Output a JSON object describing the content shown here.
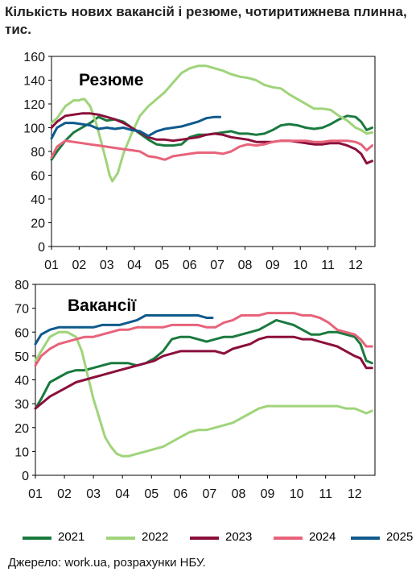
{
  "title": "Кількість нових вакансій і резюме, чотиритижнева плинна, тис.",
  "source": "Джерело: work.ua, розрахунки НБУ.",
  "colors": {
    "2021": "#1a7a3e",
    "2022": "#9fd47a",
    "2023": "#8b0f3c",
    "2024": "#e8637a",
    "2025": "#0f5a8c"
  },
  "legend": [
    {
      "label": "2021",
      "color": "#1a7a3e"
    },
    {
      "label": "2022",
      "color": "#9fd47a"
    },
    {
      "label": "2023",
      "color": "#8b0f3c"
    },
    {
      "label": "2024",
      "color": "#e8637a"
    },
    {
      "label": "2025",
      "color": "#0f5a8c"
    }
  ],
  "chart_data": [
    {
      "type": "line",
      "title": "Резюме",
      "ylim": [
        0,
        160
      ],
      "yticks": [
        0,
        20,
        40,
        60,
        80,
        100,
        120,
        140,
        160
      ],
      "xlim": [
        1,
        12.7
      ],
      "xticks": [
        1,
        2,
        3,
        4,
        5,
        6,
        7,
        8,
        9,
        10,
        11,
        12
      ],
      "xticklabels": [
        "01",
        "02",
        "03",
        "04",
        "05",
        "06",
        "07",
        "08",
        "09",
        "10",
        "11",
        "12"
      ],
      "grid": false,
      "series": [
        {
          "name": "2021",
          "x": [
            1,
            1.2,
            1.5,
            1.8,
            2.1,
            2.4,
            2.7,
            3.0,
            3.3,
            3.6,
            3.9,
            4.2,
            4.5,
            4.8,
            5.1,
            5.4,
            5.7,
            6.0,
            6.3,
            6.6,
            6.9,
            7.2,
            7.5,
            7.8,
            8.1,
            8.4,
            8.7,
            9.0,
            9.3,
            9.6,
            9.9,
            10.2,
            10.5,
            10.8,
            11.1,
            11.4,
            11.7,
            12.0,
            12.2,
            12.4,
            12.6
          ],
          "y": [
            73,
            80,
            89,
            96,
            100,
            104,
            109,
            106,
            107,
            105,
            100,
            95,
            90,
            86,
            85,
            85,
            86,
            92,
            94,
            94,
            95,
            96,
            97,
            95,
            95,
            94,
            95,
            98,
            102,
            103,
            102,
            100,
            99,
            100,
            103,
            107,
            110,
            109,
            105,
            98,
            100
          ]
        },
        {
          "name": "2022",
          "x": [
            1,
            1.2,
            1.5,
            1.8,
            2.0,
            2.1,
            2.2,
            2.4,
            2.6,
            2.8,
            3.0,
            3.1,
            3.2,
            3.4,
            3.6,
            3.9,
            4.2,
            4.5,
            4.8,
            5.1,
            5.4,
            5.7,
            6.0,
            6.3,
            6.6,
            6.9,
            7.2,
            7.5,
            7.8,
            8.1,
            8.4,
            8.7,
            9.0,
            9.3,
            9.6,
            9.9,
            10.2,
            10.5,
            10.8,
            11.1,
            11.4,
            11.7,
            12.0,
            12.2,
            12.4,
            12.6
          ],
          "y": [
            104,
            108,
            118,
            123,
            123,
            124,
            124,
            118,
            105,
            88,
            70,
            60,
            55,
            62,
            78,
            95,
            110,
            118,
            124,
            130,
            138,
            146,
            150,
            152,
            152,
            150,
            148,
            145,
            143,
            142,
            140,
            136,
            134,
            133,
            128,
            124,
            120,
            116,
            116,
            115,
            110,
            106,
            100,
            98,
            95,
            96
          ]
        },
        {
          "name": "2023",
          "x": [
            1,
            1.2,
            1.5,
            1.8,
            2.1,
            2.4,
            2.7,
            3.0,
            3.3,
            3.6,
            3.9,
            4.2,
            4.5,
            4.8,
            5.1,
            5.4,
            5.7,
            6.0,
            6.3,
            6.6,
            6.9,
            7.2,
            7.5,
            7.8,
            8.1,
            8.4,
            8.7,
            9.0,
            9.3,
            9.6,
            9.9,
            10.2,
            10.5,
            10.8,
            11.1,
            11.4,
            11.7,
            12.0,
            12.2,
            12.4,
            12.6
          ],
          "y": [
            100,
            105,
            110,
            111,
            112,
            112,
            111,
            109,
            107,
            104,
            100,
            96,
            92,
            90,
            90,
            89,
            90,
            91,
            92,
            94,
            95,
            94,
            92,
            91,
            90,
            88,
            88,
            88,
            89,
            89,
            88,
            87,
            86,
            86,
            87,
            87,
            85,
            82,
            78,
            70,
            72
          ]
        },
        {
          "name": "2024",
          "x": [
            1,
            1.2,
            1.5,
            1.8,
            2.1,
            2.4,
            2.7,
            3.0,
            3.3,
            3.6,
            3.9,
            4.2,
            4.5,
            4.8,
            5.1,
            5.4,
            5.7,
            6.0,
            6.3,
            6.6,
            6.9,
            7.2,
            7.5,
            7.8,
            8.1,
            8.4,
            8.7,
            9.0,
            9.3,
            9.6,
            9.9,
            10.2,
            10.5,
            10.8,
            11.1,
            11.4,
            11.7,
            12.0,
            12.2,
            12.4,
            12.6
          ],
          "y": [
            75,
            84,
            89,
            88,
            87,
            86,
            85,
            84,
            83,
            82,
            81,
            80,
            76,
            75,
            73,
            76,
            77,
            78,
            79,
            79,
            79,
            78,
            80,
            84,
            86,
            85,
            86,
            88,
            89,
            89,
            89,
            89,
            88,
            88,
            89,
            89,
            89,
            88,
            86,
            81,
            85
          ]
        },
        {
          "name": "2025",
          "x": [
            1,
            1.2,
            1.5,
            1.8,
            2.1,
            2.4,
            2.7,
            3.0,
            3.3,
            3.6,
            3.9,
            4.2,
            4.5,
            4.8,
            5.1,
            5.4,
            5.7,
            6.0,
            6.3,
            6.6,
            6.9,
            7.1
          ],
          "y": [
            91,
            100,
            104,
            104,
            103,
            102,
            99,
            100,
            99,
            100,
            98,
            97,
            93,
            97,
            99,
            100,
            101,
            103,
            105,
            108,
            109,
            109
          ]
        }
      ]
    },
    {
      "type": "line",
      "title": "Вакансії",
      "ylim": [
        0,
        80
      ],
      "yticks": [
        0,
        10,
        20,
        30,
        40,
        50,
        60,
        70,
        80
      ],
      "xlim": [
        1,
        12.7
      ],
      "xticks": [
        1,
        2,
        3,
        4,
        5,
        6,
        7,
        8,
        9,
        10,
        11,
        12
      ],
      "xticklabels": [
        "01",
        "02",
        "03",
        "04",
        "05",
        "06",
        "07",
        "08",
        "09",
        "10",
        "11",
        "12"
      ],
      "grid": false,
      "series": [
        {
          "name": "2021",
          "x": [
            1,
            1.2,
            1.5,
            1.8,
            2.1,
            2.4,
            2.7,
            3.0,
            3.3,
            3.6,
            3.9,
            4.2,
            4.5,
            4.8,
            5.1,
            5.4,
            5.7,
            6.0,
            6.3,
            6.6,
            6.9,
            7.2,
            7.5,
            7.8,
            8.1,
            8.4,
            8.7,
            9.0,
            9.3,
            9.6,
            9.9,
            10.2,
            10.5,
            10.8,
            11.1,
            11.4,
            11.7,
            12.0,
            12.2,
            12.4,
            12.6
          ],
          "y": [
            28,
            32,
            39,
            41,
            43,
            44,
            44,
            45,
            46,
            47,
            47,
            47,
            46,
            47,
            49,
            52,
            57,
            58,
            58,
            57,
            56,
            57,
            58,
            58,
            59,
            60,
            61,
            63,
            65,
            64,
            63,
            61,
            59,
            59,
            60,
            60,
            59,
            58,
            55,
            48,
            47
          ]
        },
        {
          "name": "2022",
          "x": [
            1,
            1.2,
            1.5,
            1.8,
            2.1,
            2.4,
            2.6,
            2.8,
            3.0,
            3.2,
            3.4,
            3.6,
            3.8,
            4.0,
            4.2,
            4.5,
            4.8,
            5.1,
            5.4,
            5.7,
            6.0,
            6.3,
            6.6,
            6.9,
            7.2,
            7.5,
            7.8,
            8.1,
            8.4,
            8.7,
            9.0,
            9.3,
            9.6,
            9.9,
            10.2,
            10.5,
            10.8,
            11.1,
            11.4,
            11.7,
            12.0,
            12.2,
            12.4,
            12.6
          ],
          "y": [
            48,
            52,
            58,
            60,
            60,
            58,
            52,
            42,
            32,
            24,
            16,
            12,
            9,
            8,
            8,
            9,
            10,
            11,
            12,
            14,
            16,
            18,
            19,
            19,
            20,
            21,
            22,
            24,
            26,
            28,
            29,
            29,
            29,
            29,
            29,
            29,
            29,
            29,
            29,
            28,
            28,
            27,
            26,
            27
          ]
        },
        {
          "name": "2023",
          "x": [
            1,
            1.2,
            1.5,
            1.8,
            2.1,
            2.4,
            2.7,
            3.0,
            3.3,
            3.6,
            3.9,
            4.2,
            4.5,
            4.8,
            5.1,
            5.4,
            5.7,
            6.0,
            6.3,
            6.6,
            6.9,
            7.2,
            7.5,
            7.8,
            8.1,
            8.4,
            8.7,
            9.0,
            9.3,
            9.6,
            9.9,
            10.2,
            10.5,
            10.8,
            11.1,
            11.4,
            11.7,
            12.0,
            12.2,
            12.4,
            12.6
          ],
          "y": [
            28,
            30,
            33,
            35,
            37,
            39,
            40,
            41,
            42,
            43,
            44,
            45,
            46,
            47,
            48,
            50,
            51,
            52,
            52,
            52,
            52,
            52,
            51,
            53,
            54,
            55,
            57,
            58,
            58,
            58,
            58,
            57,
            57,
            56,
            55,
            54,
            52,
            50,
            49,
            45,
            45
          ]
        },
        {
          "name": "2024",
          "x": [
            1,
            1.2,
            1.5,
            1.8,
            2.1,
            2.4,
            2.7,
            3.0,
            3.3,
            3.6,
            3.9,
            4.2,
            4.5,
            4.8,
            5.1,
            5.4,
            5.7,
            6.0,
            6.3,
            6.6,
            6.9,
            7.2,
            7.5,
            7.8,
            8.1,
            8.4,
            8.7,
            9.0,
            9.3,
            9.6,
            9.9,
            10.2,
            10.5,
            10.8,
            11.1,
            11.4,
            11.7,
            12.0,
            12.2,
            12.4,
            12.6
          ],
          "y": [
            46,
            50,
            53,
            55,
            56,
            57,
            58,
            58,
            59,
            60,
            61,
            61,
            62,
            62,
            62,
            62,
            63,
            63,
            63,
            63,
            62,
            62,
            64,
            65,
            67,
            67,
            67,
            68,
            68,
            68,
            68,
            67,
            67,
            66,
            64,
            61,
            60,
            59,
            57,
            54,
            54
          ]
        },
        {
          "name": "2025",
          "x": [
            1,
            1.2,
            1.5,
            1.8,
            2.1,
            2.4,
            2.7,
            3.0,
            3.3,
            3.6,
            3.9,
            4.2,
            4.5,
            4.8,
            5.1,
            5.4,
            5.7,
            6.0,
            6.3,
            6.6,
            6.9,
            7.1
          ],
          "y": [
            55,
            59,
            61,
            62,
            62,
            62,
            62,
            62,
            63,
            63,
            63,
            64,
            65,
            67,
            67,
            67,
            67,
            67,
            67,
            67,
            66,
            66
          ]
        }
      ]
    }
  ]
}
